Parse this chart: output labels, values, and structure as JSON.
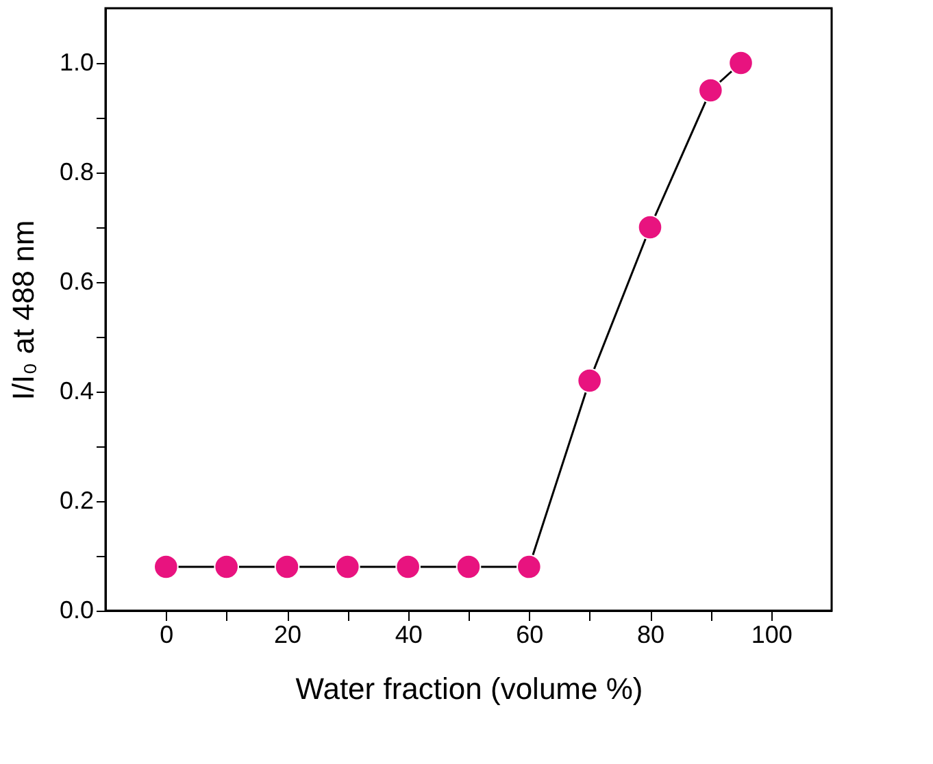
{
  "chart_data": {
    "type": "line",
    "xlabel": "Water fraction (volume %)",
    "ylabel": "I/I₀ at 488 nm",
    "x": [
      0,
      10,
      20,
      30,
      40,
      50,
      60,
      70,
      80,
      90,
      95
    ],
    "series": [
      {
        "color": "#e8137f",
        "values": [
          0.08,
          0.08,
          0.08,
          0.08,
          0.08,
          0.08,
          0.08,
          0.42,
          0.7,
          0.95,
          1.0
        ]
      }
    ],
    "xlim": [
      -10,
      110
    ],
    "ylim": [
      0,
      1.1
    ],
    "xticks": [
      0,
      {
        "value": 10,
        "label": null
      },
      20,
      {
        "value": 30,
        "label": null
      },
      40,
      {
        "value": 50,
        "label": null
      },
      60,
      {
        "value": 70,
        "label": null
      },
      80,
      {
        "value": 90,
        "label": null
      },
      100
    ],
    "yticks": [
      {
        "value": 0,
        "label": "0.0"
      },
      {
        "value": 0.1,
        "label": null
      },
      {
        "value": 0.2,
        "label": "0.2"
      },
      {
        "value": 0.3,
        "label": null
      },
      {
        "value": 0.4,
        "label": "0.4"
      },
      {
        "value": 0.5,
        "label": null
      },
      {
        "value": 0.6,
        "label": "0.6"
      },
      {
        "value": 0.7,
        "label": null
      },
      {
        "value": 0.8,
        "label": "0.8"
      },
      {
        "value": 0.9,
        "label": null
      },
      {
        "value": 1.0,
        "label": "1.0"
      }
    ],
    "grid": false,
    "marker": "circle",
    "line_style": "solid"
  }
}
